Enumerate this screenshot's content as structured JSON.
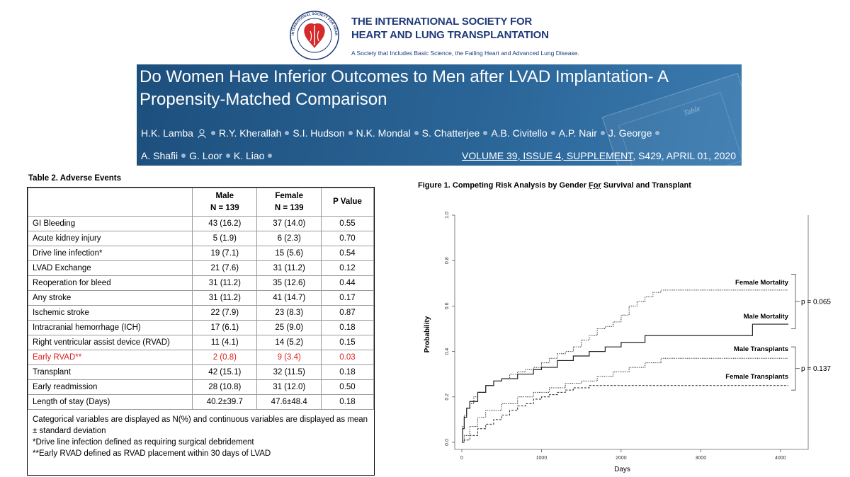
{
  "header": {
    "org_line1": "THE INTERNATIONAL SOCIETY FOR",
    "org_line2": "HEART AND LUNG TRANSPLANTATION",
    "tagline": "A Society that Includes Basic Science, the Failing Heart and Advanced Lung Disease.",
    "logo_text": "INTERNATIONAL SOCIETY FOR HEART & LUNG TRANSPLANTATION",
    "brand_color": "#1f3a78",
    "logo_color": "#d42a2a"
  },
  "banner": {
    "title": "Do Women Have Inferior Outcomes to Men after LVAD Implantation- A Propensity-Matched Comparison",
    "authors_row1": [
      "H.K. Lamba",
      "R.Y. Kherallah",
      "S.I. Hudson",
      "N.K. Mondal",
      "S. Chatterjee",
      "A.B. Civitello",
      "A.P. Nair",
      "J. George"
    ],
    "authors_row2": [
      "A. Shafii",
      "G. Loor",
      "K. Liao"
    ],
    "citation_volume": "VOLUME 39, ISSUE 4, SUPPLEMENT",
    "citation_rest": ", S429, APRIL 01, 2020",
    "watermark": "Table"
  },
  "table": {
    "title": "Table 2. Adverse Events",
    "headers": {
      "male": [
        "Male",
        "N = 139"
      ],
      "female": [
        "Female",
        "N = 139"
      ],
      "p": "P Value"
    },
    "rows": [
      {
        "label": "GI Bleeding",
        "male": "43 (16.2)",
        "female": "37 (14.0)",
        "p": "0.55"
      },
      {
        "label": "Acute kidney injury",
        "male": "5 (1.9)",
        "female": "6 (2.3)",
        "p": "0.70"
      },
      {
        "label": "Drive line infection*",
        "male": "19 (7.1)",
        "female": "15 (5.6)",
        "p": "0.54"
      },
      {
        "label": "LVAD Exchange",
        "male": "21 (7.6)",
        "female": "31 (11.2)",
        "p": "0.12"
      },
      {
        "label": "Reoperation for bleed",
        "male": "31 (11.2)",
        "female": "35 (12.6)",
        "p": "0.44"
      },
      {
        "label": "Any stroke",
        "male": "31 (11.2)",
        "female": "41 (14.7)",
        "p": "0.17"
      },
      {
        "label": "Ischemic stroke",
        "male": "22 (7.9)",
        "female": "23 (8.3)",
        "p": "0.87"
      },
      {
        "label": "Intracranial hemorrhage (ICH)",
        "male": "17 (6.1)",
        "female": "25 (9.0)",
        "p": "0.18"
      },
      {
        "label": "Right ventricular assist device (RVAD)",
        "male": "11 (4.1)",
        "female": "14 (5.2)",
        "p": "0.15"
      },
      {
        "label": "Early RVAD**",
        "male": "2 (0.8)",
        "female": "9 (3.4)",
        "p": "0.03"
      },
      {
        "label": "Transplant",
        "male": "42 (15.1)",
        "female": "32 (11.5)",
        "p": "0.18"
      },
      {
        "label": "Early readmission",
        "male": "28 (10.8)",
        "female": "31 (12.0)",
        "p": "0.50"
      },
      {
        "label": "Length of stay (Days)",
        "male": "40.2±39.7",
        "female": "47.6±48.4",
        "p": "0.18"
      }
    ],
    "highlight_color": "#e02020",
    "notes": [
      "Categorical variables are displayed as N(%) and continuous variables are displayed as mean ± standard deviation",
      "*Drive line infection defined as requiring surgical debridement",
      "**Early RVAD defined as RVAD placement within 30 days of LVAD"
    ]
  },
  "figure": {
    "title_prefix": "Figure 1. Competing Risk Analysis by Gender ",
    "title_underlined": "For",
    "title_suffix": " Survival and Transplant"
  },
  "chart_data": {
    "type": "line",
    "title": "Figure 1. Competing Risk Analysis by Gender For Survival and Transplant",
    "xlabel": "Days",
    "ylabel": "Probability",
    "xlim": [
      0,
      4100
    ],
    "ylim": [
      0,
      1.0
    ],
    "x_ticks": [
      "0",
      "1000",
      "2000",
      "3000",
      "4000"
    ],
    "y_ticks": [
      "0.0",
      "0.2",
      "0.4",
      "0.6",
      "0.8",
      "1.0"
    ],
    "series": [
      {
        "name": "Female Mortality",
        "style": "dotted",
        "x": [
          0,
          10,
          30,
          60,
          100,
          150,
          200,
          300,
          400,
          500,
          600,
          700,
          800,
          900,
          1000,
          1100,
          1200,
          1300,
          1400,
          1500,
          1600,
          1700,
          1800,
          1900,
          2000,
          2100,
          2200,
          2300,
          2400,
          2500,
          3000,
          3500,
          4100
        ],
        "y": [
          0.0,
          0.07,
          0.12,
          0.15,
          0.17,
          0.2,
          0.22,
          0.25,
          0.27,
          0.28,
          0.3,
          0.31,
          0.32,
          0.33,
          0.35,
          0.37,
          0.39,
          0.4,
          0.42,
          0.45,
          0.47,
          0.5,
          0.51,
          0.53,
          0.56,
          0.6,
          0.62,
          0.64,
          0.66,
          0.67,
          0.67,
          0.67,
          0.67
        ]
      },
      {
        "name": "Male Mortality",
        "style": "solid",
        "x": [
          0,
          10,
          30,
          60,
          100,
          200,
          300,
          400,
          500,
          700,
          900,
          1000,
          1200,
          1400,
          1600,
          1800,
          2000,
          2300,
          3000,
          3600,
          3650,
          4100
        ],
        "y": [
          0.0,
          0.06,
          0.11,
          0.15,
          0.18,
          0.22,
          0.25,
          0.27,
          0.28,
          0.3,
          0.32,
          0.33,
          0.36,
          0.38,
          0.4,
          0.42,
          0.44,
          0.47,
          0.47,
          0.47,
          0.52,
          0.52
        ]
      },
      {
        "name": "Male Transplants",
        "style": "dotted",
        "x": [
          0,
          30,
          100,
          200,
          300,
          500,
          700,
          900,
          1100,
          1300,
          1500,
          1700,
          1900,
          2100,
          2300,
          2500,
          3000,
          3500,
          4100
        ],
        "y": [
          0.0,
          0.03,
          0.07,
          0.11,
          0.14,
          0.17,
          0.2,
          0.22,
          0.24,
          0.26,
          0.27,
          0.29,
          0.31,
          0.33,
          0.35,
          0.37,
          0.37,
          0.37,
          0.37
        ]
      },
      {
        "name": "Female Transplants",
        "style": "dashed",
        "x": [
          0,
          30,
          100,
          200,
          300,
          400,
          500,
          600,
          700,
          800,
          900,
          1000,
          1100,
          1200,
          1300,
          1400,
          1600,
          1800,
          2000,
          2500,
          3000,
          4100
        ],
        "y": [
          0.0,
          0.01,
          0.03,
          0.06,
          0.08,
          0.1,
          0.12,
          0.14,
          0.16,
          0.17,
          0.19,
          0.2,
          0.21,
          0.22,
          0.23,
          0.24,
          0.25,
          0.25,
          0.25,
          0.25,
          0.25,
          0.25
        ]
      }
    ],
    "annotations": [
      {
        "text": "p = 0.065",
        "between": [
          "Female Mortality",
          "Male Mortality"
        ]
      },
      {
        "text": "p = 0.137",
        "between": [
          "Male Transplants",
          "Female Transplants"
        ]
      }
    ]
  }
}
